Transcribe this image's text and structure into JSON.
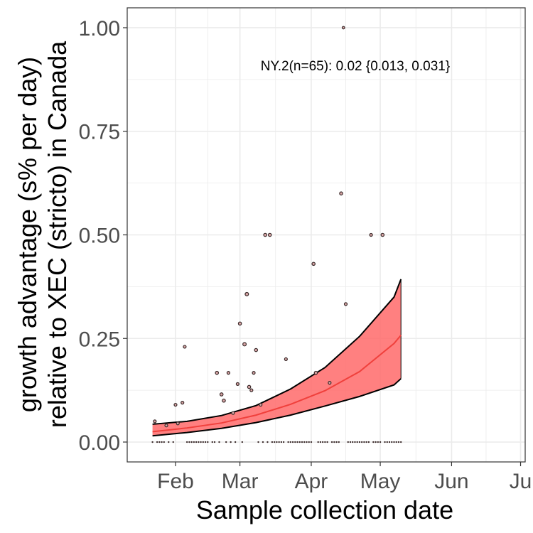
{
  "chart_data": {
    "type": "scatter",
    "title": "",
    "xlabel": "Sample collection date",
    "ylabel_line1": "growth advantage (s% per day)",
    "ylabel_line2": "relative to XEC (stricto) in Canada",
    "annotation": "NY.2(n=65): 0.02 {0.013, 0.031}",
    "xlim": [
      "2025-01-11",
      "2025-07-03"
    ],
    "ylim": [
      -0.048,
      1.048
    ],
    "x_ticks": [
      {
        "date": "2025-02-01",
        "label": "Feb"
      },
      {
        "date": "2025-03-01",
        "label": "Mar"
      },
      {
        "date": "2025-04-01",
        "label": "Apr"
      },
      {
        "date": "2025-05-01",
        "label": "May"
      },
      {
        "date": "2025-06-01",
        "label": "Jun"
      },
      {
        "date": "2025-07-01",
        "label": "Ju"
      }
    ],
    "y_ticks": [
      {
        "value": 0.0,
        "label": "0.00"
      },
      {
        "value": 0.25,
        "label": "0.25"
      },
      {
        "value": 0.5,
        "label": "0.50"
      },
      {
        "value": 0.75,
        "label": "0.75"
      },
      {
        "value": 1.0,
        "label": "1.00"
      }
    ],
    "grid": true,
    "colors": {
      "fit_line": "#f0403c",
      "ribbon": "#ff6a6a",
      "ribbon_edge": "#000000",
      "point_fill": "#d9a6a6",
      "point_stroke": "#3a2a2a",
      "grid": "#ebebeb",
      "panel_border": "#333333"
    },
    "fit": {
      "name": "fit",
      "x": [
        "2025-01-22",
        "2025-02-06",
        "2025-02-21",
        "2025-03-08",
        "2025-03-23",
        "2025-04-07",
        "2025-04-22",
        "2025-05-07",
        "2025-05-10"
      ],
      "y": [
        0.025,
        0.034,
        0.046,
        0.065,
        0.091,
        0.124,
        0.17,
        0.238,
        0.258
      ],
      "lower": [
        0.015,
        0.023,
        0.033,
        0.047,
        0.065,
        0.087,
        0.11,
        0.138,
        0.153
      ],
      "upper": [
        0.043,
        0.05,
        0.064,
        0.088,
        0.128,
        0.18,
        0.255,
        0.35,
        0.393
      ]
    },
    "points": [
      {
        "x": "2025-01-23",
        "y": 0.05,
        "r": 2.0
      },
      {
        "x": "2025-01-28",
        "y": 0.04,
        "r": 2.0
      },
      {
        "x": "2025-02-01",
        "y": 0.09,
        "r": 2.0
      },
      {
        "x": "2025-02-02",
        "y": 0.045,
        "r": 2.0
      },
      {
        "x": "2025-02-04",
        "y": 0.095,
        "r": 2.0
      },
      {
        "x": "2025-02-05",
        "y": 0.23,
        "r": 2.0
      },
      {
        "x": "2025-02-19",
        "y": 0.167,
        "r": 2.2
      },
      {
        "x": "2025-02-21",
        "y": 0.115,
        "r": 2.2
      },
      {
        "x": "2025-02-22",
        "y": 0.1,
        "r": 2.2
      },
      {
        "x": "2025-02-24",
        "y": 0.167,
        "r": 2.0
      },
      {
        "x": "2025-02-26",
        "y": 0.07,
        "r": 2.0
      },
      {
        "x": "2025-02-28",
        "y": 0.14,
        "r": 2.0
      },
      {
        "x": "2025-03-01",
        "y": 0.286,
        "r": 2.2
      },
      {
        "x": "2025-03-03",
        "y": 0.236,
        "r": 2.4
      },
      {
        "x": "2025-03-04",
        "y": 0.357,
        "r": 2.4
      },
      {
        "x": "2025-03-05",
        "y": 0.133,
        "r": 2.2
      },
      {
        "x": "2025-03-06",
        "y": 0.125,
        "r": 2.0
      },
      {
        "x": "2025-03-07",
        "y": 0.167,
        "r": 2.0
      },
      {
        "x": "2025-03-08",
        "y": 0.222,
        "r": 2.2
      },
      {
        "x": "2025-03-10",
        "y": 0.09,
        "r": 2.0
      },
      {
        "x": "2025-03-12",
        "y": 0.5,
        "r": 2.2
      },
      {
        "x": "2025-03-14",
        "y": 0.5,
        "r": 2.2
      },
      {
        "x": "2025-03-21",
        "y": 0.2,
        "r": 2.0
      },
      {
        "x": "2025-04-02",
        "y": 0.43,
        "r": 2.2
      },
      {
        "x": "2025-04-03",
        "y": 0.167,
        "r": 2.2
      },
      {
        "x": "2025-04-09",
        "y": 0.143,
        "r": 2.0
      },
      {
        "x": "2025-04-14",
        "y": 0.6,
        "r": 2.2
      },
      {
        "x": "2025-04-16",
        "y": 0.333,
        "r": 2.0
      },
      {
        "x": "2025-04-15",
        "y": 1.0,
        "r": 1.8
      },
      {
        "x": "2025-04-27",
        "y": 0.5,
        "r": 2.0
      },
      {
        "x": "2025-05-02",
        "y": 0.5,
        "r": 2.2
      }
    ],
    "zero_points_x": [
      "2025-01-22",
      "2025-01-24",
      "2025-01-25",
      "2025-01-26",
      "2025-01-27",
      "2025-01-29",
      "2025-01-31",
      "2025-02-06",
      "2025-02-07",
      "2025-02-08",
      "2025-02-09",
      "2025-02-10",
      "2025-02-11",
      "2025-02-12",
      "2025-02-13",
      "2025-02-14",
      "2025-02-15",
      "2025-02-17",
      "2025-02-18",
      "2025-02-20",
      "2025-02-23",
      "2025-02-25",
      "2025-02-27",
      "2025-03-02",
      "2025-03-09",
      "2025-03-11",
      "2025-03-13",
      "2025-03-15",
      "2025-03-16",
      "2025-03-17",
      "2025-03-18",
      "2025-03-19",
      "2025-03-20",
      "2025-03-22",
      "2025-03-23",
      "2025-03-24",
      "2025-03-25",
      "2025-03-26",
      "2025-03-27",
      "2025-03-28",
      "2025-03-29",
      "2025-03-30",
      "2025-03-31",
      "2025-04-01",
      "2025-04-04",
      "2025-04-05",
      "2025-04-06",
      "2025-04-07",
      "2025-04-08",
      "2025-04-10",
      "2025-04-11",
      "2025-04-12",
      "2025-04-13",
      "2025-04-17",
      "2025-04-18",
      "2025-04-19",
      "2025-04-20",
      "2025-04-21",
      "2025-04-22",
      "2025-04-23",
      "2025-04-24",
      "2025-04-25",
      "2025-04-26",
      "2025-04-28",
      "2025-04-29",
      "2025-04-30",
      "2025-05-01",
      "2025-05-03",
      "2025-05-04",
      "2025-05-05",
      "2025-05-06",
      "2025-05-07",
      "2025-05-08",
      "2025-05-09",
      "2025-05-10"
    ]
  }
}
